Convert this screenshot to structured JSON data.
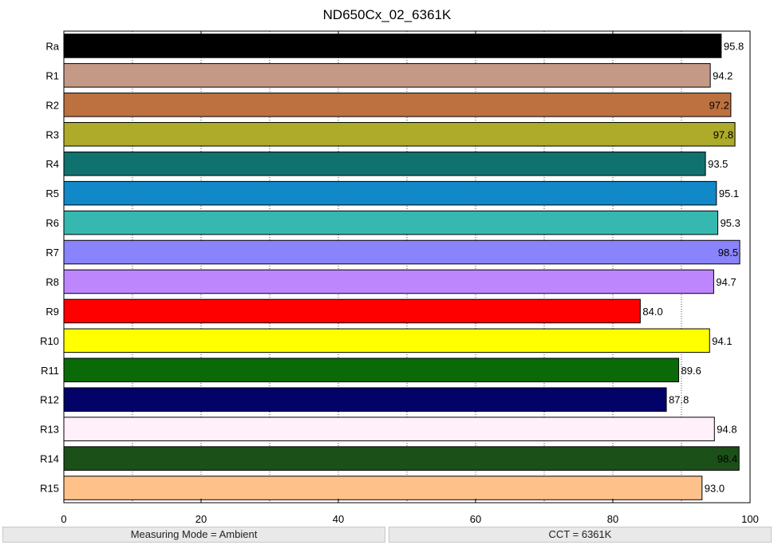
{
  "chart_data": {
    "type": "bar",
    "orientation": "horizontal",
    "title": "ND650Cx_02_6361K",
    "xlim": [
      0,
      100
    ],
    "xticks": [
      0,
      20,
      40,
      60,
      80,
      100
    ],
    "grid": "vertical dotted",
    "categories": [
      "Ra",
      "R1",
      "R2",
      "R3",
      "R4",
      "R5",
      "R6",
      "R7",
      "R8",
      "R9",
      "R10",
      "R11",
      "R12",
      "R13",
      "R14",
      "R15"
    ],
    "values": [
      95.8,
      94.2,
      97.2,
      97.8,
      93.5,
      95.1,
      95.3,
      98.5,
      94.7,
      84.0,
      94.1,
      89.6,
      87.8,
      94.8,
      98.4,
      93.0
    ],
    "value_labels": [
      "95.8",
      "94.2",
      "97.2",
      "97.8",
      "93.5",
      "95.1",
      "95.3",
      "98.5",
      "94.7",
      "84.0",
      "94.1",
      "89.6",
      "87.8",
      "94.8",
      "98.4",
      "93.0"
    ],
    "colors": [
      "#000000",
      "#c49a86",
      "#bd7040",
      "#aeaa2a",
      "#10726f",
      "#1188c8",
      "#36b8b0",
      "#8a84fc",
      "#be86fc",
      "#ff0000",
      "#ffff00",
      "#0b6a08",
      "#020268",
      "#fff0fa",
      "#1b5018",
      "#ffc18a"
    ]
  },
  "status": {
    "left": "Measuring Mode = Ambient",
    "right": "CCT = 6361K"
  }
}
